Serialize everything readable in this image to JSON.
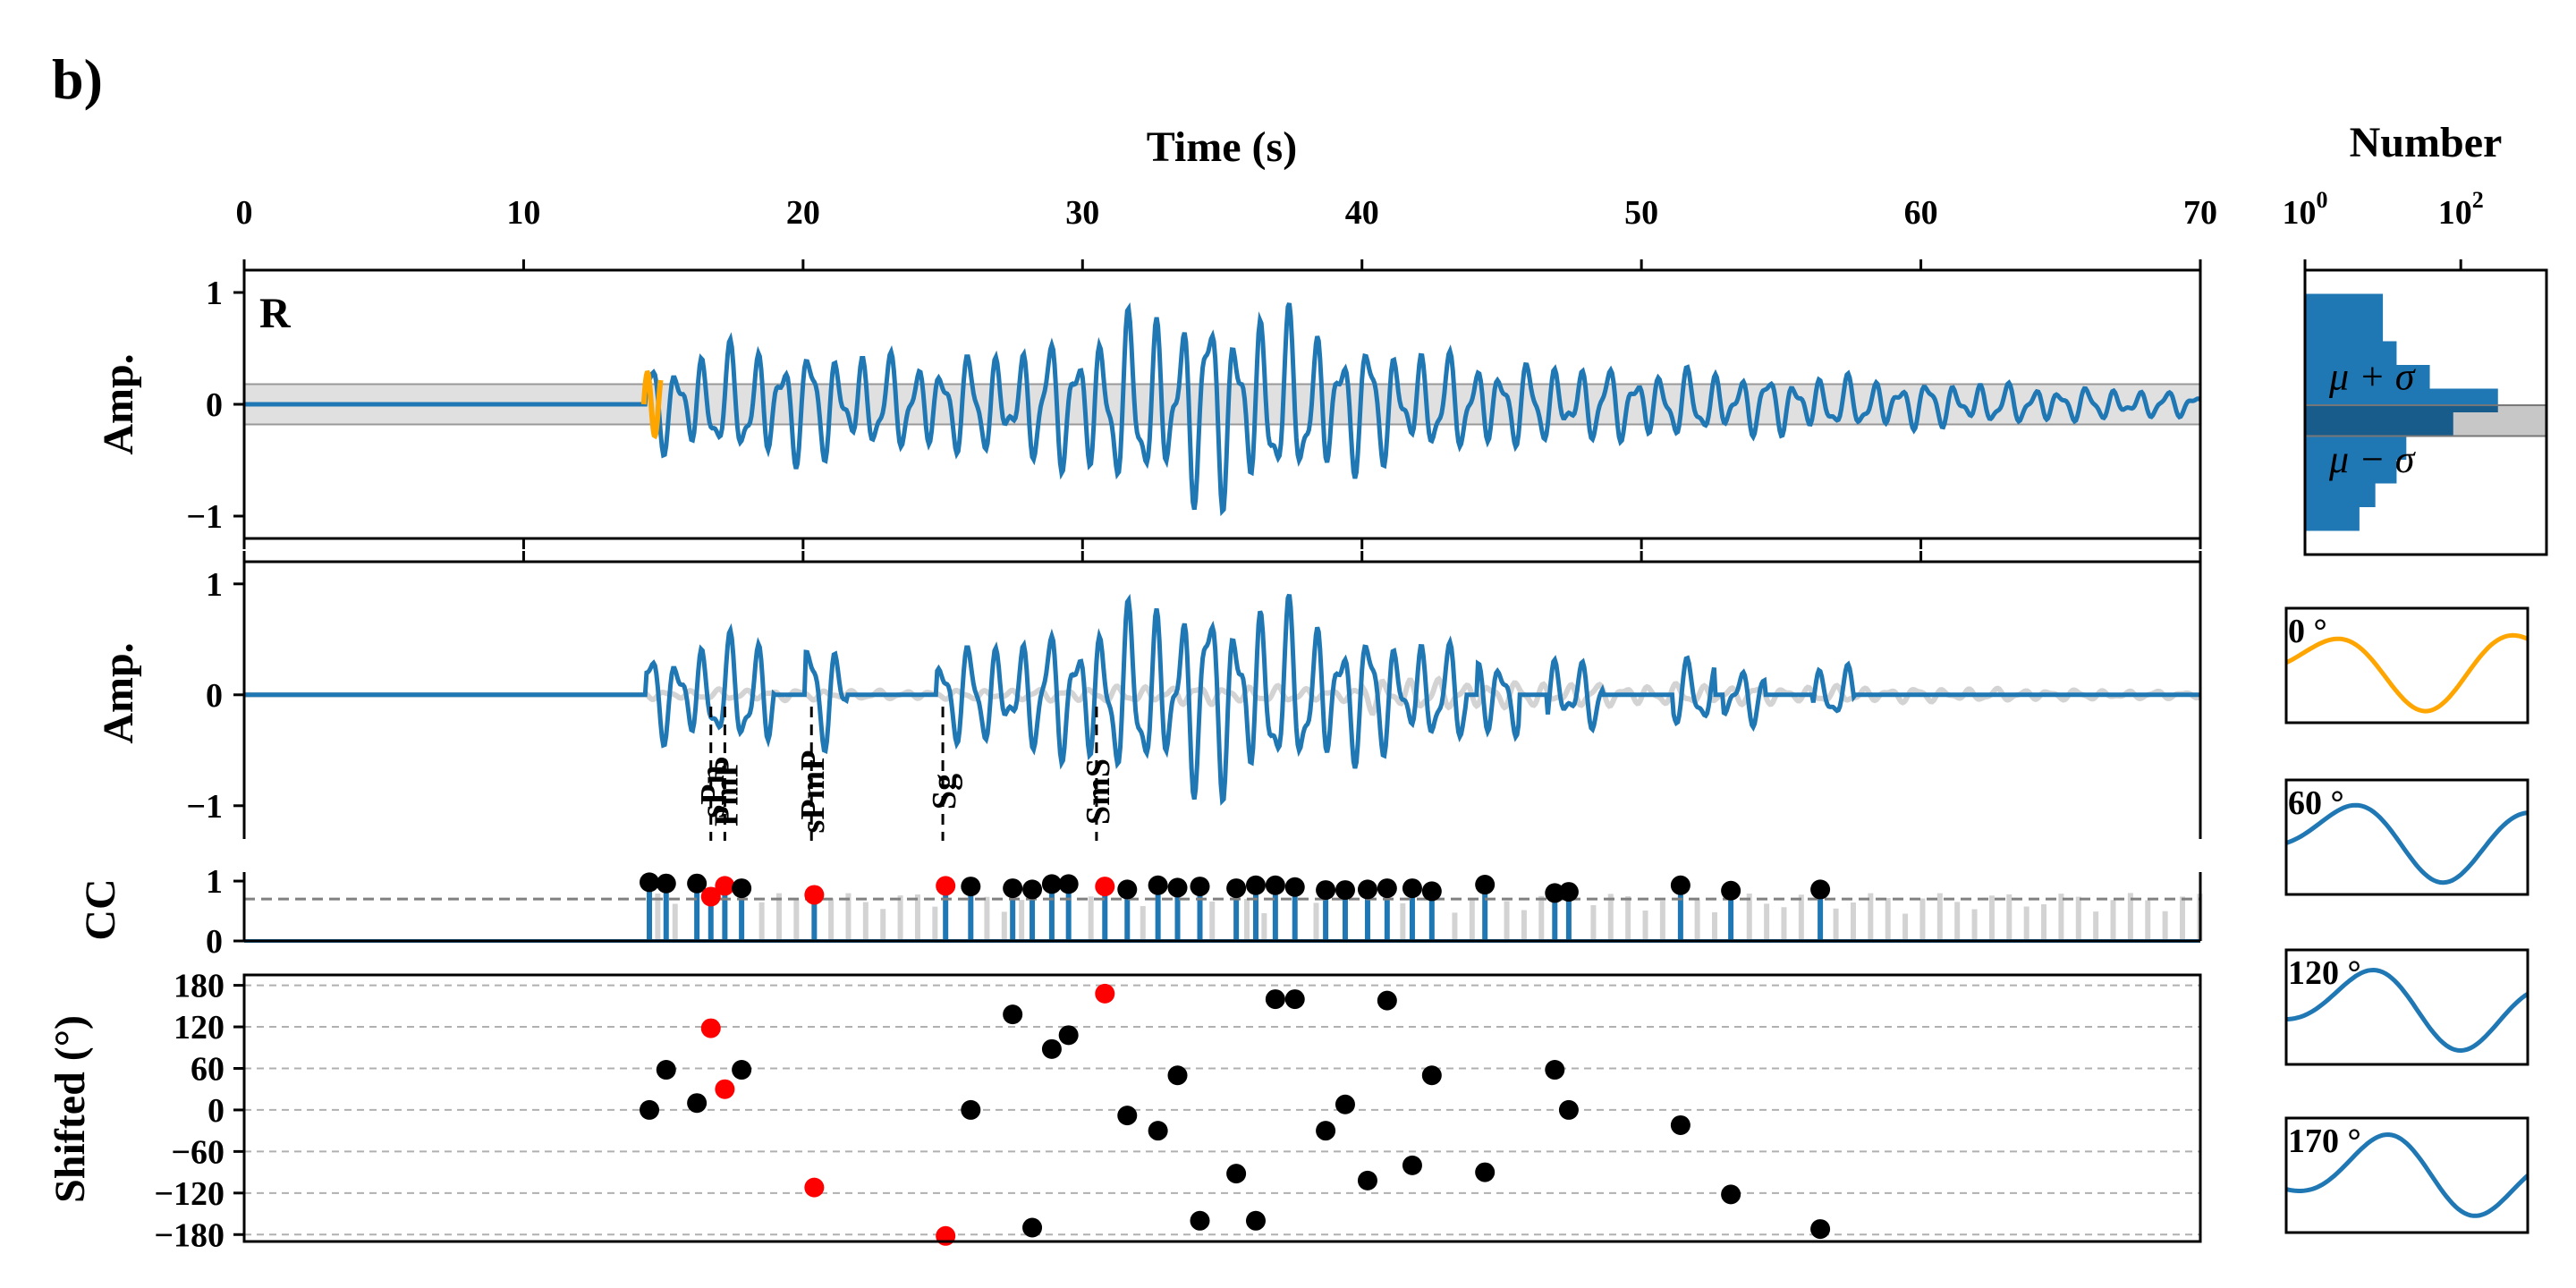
{
  "figure": {
    "panel_label": "b)"
  },
  "chart_data": [
    {
      "id": "waveform-R",
      "type": "line",
      "title": "",
      "xlabel": "Time (s)",
      "ylabel": "Amp.",
      "xlim": [
        0,
        70
      ],
      "ylim": [
        -1.2,
        1.2
      ],
      "xticks": [
        0,
        10,
        20,
        30,
        40,
        50,
        60,
        70
      ],
      "xtick_labels": [
        "0",
        "10",
        "20",
        "30",
        "40",
        "50",
        "60",
        "70"
      ],
      "yticks": [
        1,
        0,
        -1
      ],
      "ytick_labels": [
        "1",
        "0",
        "−1"
      ],
      "component_label": "R",
      "noise_band": [
        -0.18,
        0.18
      ],
      "onset_time": 14.4,
      "peak_time": 34.6,
      "series": [
        {
          "role": "waveform",
          "color": "#1f77b4"
        },
        {
          "role": "onset-window",
          "color": "#ffa500",
          "x_range": [
            14.3,
            14.9
          ]
        }
      ]
    },
    {
      "id": "waveform-filtered",
      "type": "line",
      "title": "",
      "ylabel": "Amp.",
      "xlim": [
        0,
        70
      ],
      "ylim": [
        -1.3,
        1.2
      ],
      "yticks": [
        1,
        0,
        -1
      ],
      "ytick_labels": [
        "1",
        "0",
        "−1"
      ],
      "phases": [
        {
          "name": "sPn",
          "t": 16.7
        },
        {
          "name": "PmP",
          "t": 17.2
        },
        {
          "name": "sPmP",
          "t": 20.3
        },
        {
          "name": "Sg",
          "t": 25.0
        },
        {
          "name": "SmS",
          "t": 30.5
        }
      ],
      "series": [
        {
          "role": "background",
          "color": "#d3d3d3"
        },
        {
          "role": "selected",
          "color": "#1f77b4"
        }
      ]
    },
    {
      "id": "cc-stems",
      "type": "scatter",
      "title": "",
      "ylabel": "CC",
      "xlim": [
        0,
        70
      ],
      "ylim": [
        0,
        1.15
      ],
      "yticks": [
        1,
        0
      ],
      "ytick_labels": [
        "1",
        "0"
      ],
      "threshold": 0.7,
      "points": [
        {
          "t": 14.5,
          "cc": 0.98,
          "color": "black"
        },
        {
          "t": 15.1,
          "cc": 0.96,
          "color": "black"
        },
        {
          "t": 16.2,
          "cc": 0.96,
          "color": "black"
        },
        {
          "t": 16.7,
          "cc": 0.74,
          "color": "red"
        },
        {
          "t": 17.2,
          "cc": 0.92,
          "color": "red"
        },
        {
          "t": 17.8,
          "cc": 0.88,
          "color": "black"
        },
        {
          "t": 20.4,
          "cc": 0.77,
          "color": "red"
        },
        {
          "t": 25.1,
          "cc": 0.92,
          "color": "red"
        },
        {
          "t": 26.0,
          "cc": 0.91,
          "color": "black"
        },
        {
          "t": 27.5,
          "cc": 0.88,
          "color": "black"
        },
        {
          "t": 28.2,
          "cc": 0.86,
          "color": "black"
        },
        {
          "t": 28.9,
          "cc": 0.95,
          "color": "black"
        },
        {
          "t": 29.5,
          "cc": 0.95,
          "color": "black"
        },
        {
          "t": 30.8,
          "cc": 0.91,
          "color": "red"
        },
        {
          "t": 31.6,
          "cc": 0.86,
          "color": "black"
        },
        {
          "t": 32.7,
          "cc": 0.93,
          "color": "black"
        },
        {
          "t": 33.4,
          "cc": 0.89,
          "color": "black"
        },
        {
          "t": 34.2,
          "cc": 0.91,
          "color": "black"
        },
        {
          "t": 35.5,
          "cc": 0.88,
          "color": "black"
        },
        {
          "t": 36.2,
          "cc": 0.93,
          "color": "black"
        },
        {
          "t": 36.9,
          "cc": 0.93,
          "color": "black"
        },
        {
          "t": 37.6,
          "cc": 0.9,
          "color": "black"
        },
        {
          "t": 38.7,
          "cc": 0.85,
          "color": "black"
        },
        {
          "t": 39.4,
          "cc": 0.85,
          "color": "black"
        },
        {
          "t": 40.2,
          "cc": 0.86,
          "color": "black"
        },
        {
          "t": 40.9,
          "cc": 0.88,
          "color": "black"
        },
        {
          "t": 41.8,
          "cc": 0.88,
          "color": "black"
        },
        {
          "t": 42.5,
          "cc": 0.83,
          "color": "black"
        },
        {
          "t": 44.4,
          "cc": 0.94,
          "color": "black"
        },
        {
          "t": 46.9,
          "cc": 0.8,
          "color": "black"
        },
        {
          "t": 47.4,
          "cc": 0.82,
          "color": "black"
        },
        {
          "t": 51.4,
          "cc": 0.93,
          "color": "black"
        },
        {
          "t": 53.2,
          "cc": 0.84,
          "color": "black"
        },
        {
          "t": 56.4,
          "cc": 0.86,
          "color": "black"
        }
      ],
      "unselected_stem_color": "#d3d3d3",
      "selected_stem_color": "#1f77b4"
    },
    {
      "id": "phase-shift",
      "type": "scatter",
      "title": "",
      "ylabel": "Shifted (°)",
      "xlim": [
        0,
        70
      ],
      "ylim": [
        -190,
        195
      ],
      "yticks": [
        180,
        120,
        60,
        0,
        -60,
        -120,
        -180
      ],
      "ytick_labels": [
        "180",
        "120",
        "60",
        "0",
        "−60",
        "−120",
        "−180"
      ],
      "grid": true,
      "points": [
        {
          "t": 14.5,
          "deg": 0,
          "color": "black"
        },
        {
          "t": 15.1,
          "deg": 58,
          "color": "black"
        },
        {
          "t": 16.2,
          "deg": 10,
          "color": "black"
        },
        {
          "t": 16.7,
          "deg": 118,
          "color": "red"
        },
        {
          "t": 17.2,
          "deg": 30,
          "color": "red"
        },
        {
          "t": 17.8,
          "deg": 58,
          "color": "black"
        },
        {
          "t": 20.4,
          "deg": -112,
          "color": "red"
        },
        {
          "t": 25.1,
          "deg": -182,
          "color": "red"
        },
        {
          "t": 26.0,
          "deg": 0,
          "color": "black"
        },
        {
          "t": 27.5,
          "deg": 138,
          "color": "black"
        },
        {
          "t": 28.2,
          "deg": -170,
          "color": "black"
        },
        {
          "t": 28.9,
          "deg": 88,
          "color": "black"
        },
        {
          "t": 29.5,
          "deg": 108,
          "color": "black"
        },
        {
          "t": 30.8,
          "deg": 168,
          "color": "red"
        },
        {
          "t": 31.6,
          "deg": -8,
          "color": "black"
        },
        {
          "t": 32.7,
          "deg": -30,
          "color": "black"
        },
        {
          "t": 33.4,
          "deg": 50,
          "color": "black"
        },
        {
          "t": 34.2,
          "deg": -160,
          "color": "black"
        },
        {
          "t": 35.5,
          "deg": -92,
          "color": "black"
        },
        {
          "t": 36.2,
          "deg": -160,
          "color": "black"
        },
        {
          "t": 36.9,
          "deg": 160,
          "color": "black"
        },
        {
          "t": 37.6,
          "deg": 160,
          "color": "black"
        },
        {
          "t": 38.7,
          "deg": -30,
          "color": "black"
        },
        {
          "t": 39.4,
          "deg": 8,
          "color": "black"
        },
        {
          "t": 40.2,
          "deg": -102,
          "color": "black"
        },
        {
          "t": 40.9,
          "deg": 158,
          "color": "black"
        },
        {
          "t": 41.8,
          "deg": -80,
          "color": "black"
        },
        {
          "t": 42.5,
          "deg": 50,
          "color": "black"
        },
        {
          "t": 44.4,
          "deg": -90,
          "color": "black"
        },
        {
          "t": 46.9,
          "deg": 58,
          "color": "black"
        },
        {
          "t": 47.4,
          "deg": 0,
          "color": "black"
        },
        {
          "t": 51.4,
          "deg": -22,
          "color": "black"
        },
        {
          "t": 53.2,
          "deg": -122,
          "color": "black"
        },
        {
          "t": 56.4,
          "deg": -172,
          "color": "black"
        }
      ]
    },
    {
      "id": "amplitude-histogram",
      "type": "bar",
      "title": "",
      "xlabel": "Number",
      "xscale": "log",
      "xlim_log10": [
        0,
        3.1
      ],
      "xticks_log10": [
        0,
        2
      ],
      "xtick_labels": [
        {
          "base": "10",
          "exp": "0"
        },
        {
          "base": "10",
          "exp": "2"
        }
      ],
      "ylim": [
        -1.2,
        1.2
      ],
      "bins": [
        {
          "lo": 0.8,
          "hi": 1.0,
          "count": 10
        },
        {
          "lo": 0.6,
          "hi": 0.8,
          "count": 10
        },
        {
          "lo": 0.4,
          "hi": 0.6,
          "count": 15
        },
        {
          "lo": 0.2,
          "hi": 0.4,
          "count": 40
        },
        {
          "lo": 0.0,
          "hi": 0.2,
          "count": 300
        },
        {
          "lo": -0.2,
          "hi": 0.0,
          "count": 80
        },
        {
          "lo": -0.4,
          "hi": -0.2,
          "count": 20
        },
        {
          "lo": -0.6,
          "hi": -0.4,
          "count": 15
        },
        {
          "lo": -0.8,
          "hi": -0.6,
          "count": 8
        },
        {
          "lo": -1.0,
          "hi": -0.8,
          "count": 5
        }
      ],
      "bin_color": "#1f77b4",
      "band": [
        -0.2,
        0.06
      ],
      "annotations": [
        {
          "text": "μ + σ",
          "y": 0.3
        },
        {
          "text": "μ − σ",
          "y": -0.4
        }
      ]
    },
    {
      "id": "phase-rotation-insets",
      "type": "line",
      "title": "",
      "insets": [
        {
          "label": "0 °",
          "deg": 0,
          "color": "#ffa500"
        },
        {
          "label": "60 °",
          "deg": 60,
          "color": "#1f77b4"
        },
        {
          "label": "120 °",
          "deg": 120,
          "color": "#1f77b4"
        },
        {
          "label": "170 °",
          "deg": 170,
          "color": "#1f77b4"
        }
      ]
    }
  ]
}
